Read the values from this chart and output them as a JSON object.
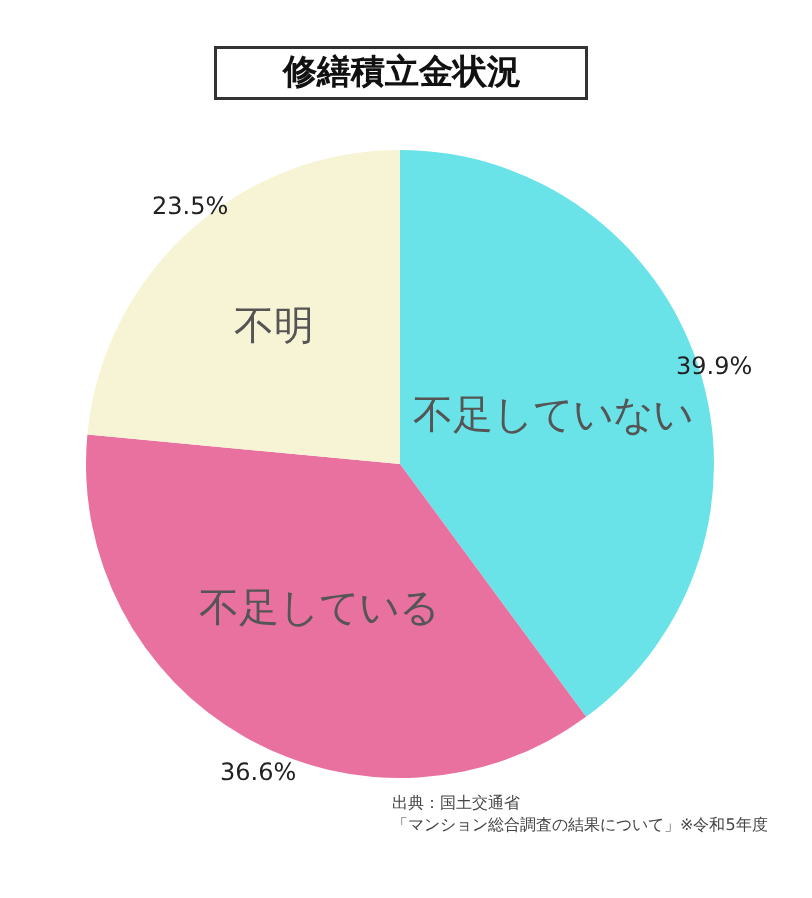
{
  "chart_data": {
    "type": "pie",
    "title": "修繕積立金状況",
    "categories": [
      "不足していない",
      "不足している",
      "不明"
    ],
    "values": [
      39.9,
      36.6,
      23.5
    ],
    "colors": [
      "#6ae3e8",
      "#e8719f",
      "#f7f4d5"
    ],
    "value_labels": [
      "39.9%",
      "36.6%",
      "23.5%"
    ],
    "legend": false,
    "annotations": [
      "出典：国土交通省",
      "「マンション総合調査の結果について」※令和5年度"
    ]
  }
}
